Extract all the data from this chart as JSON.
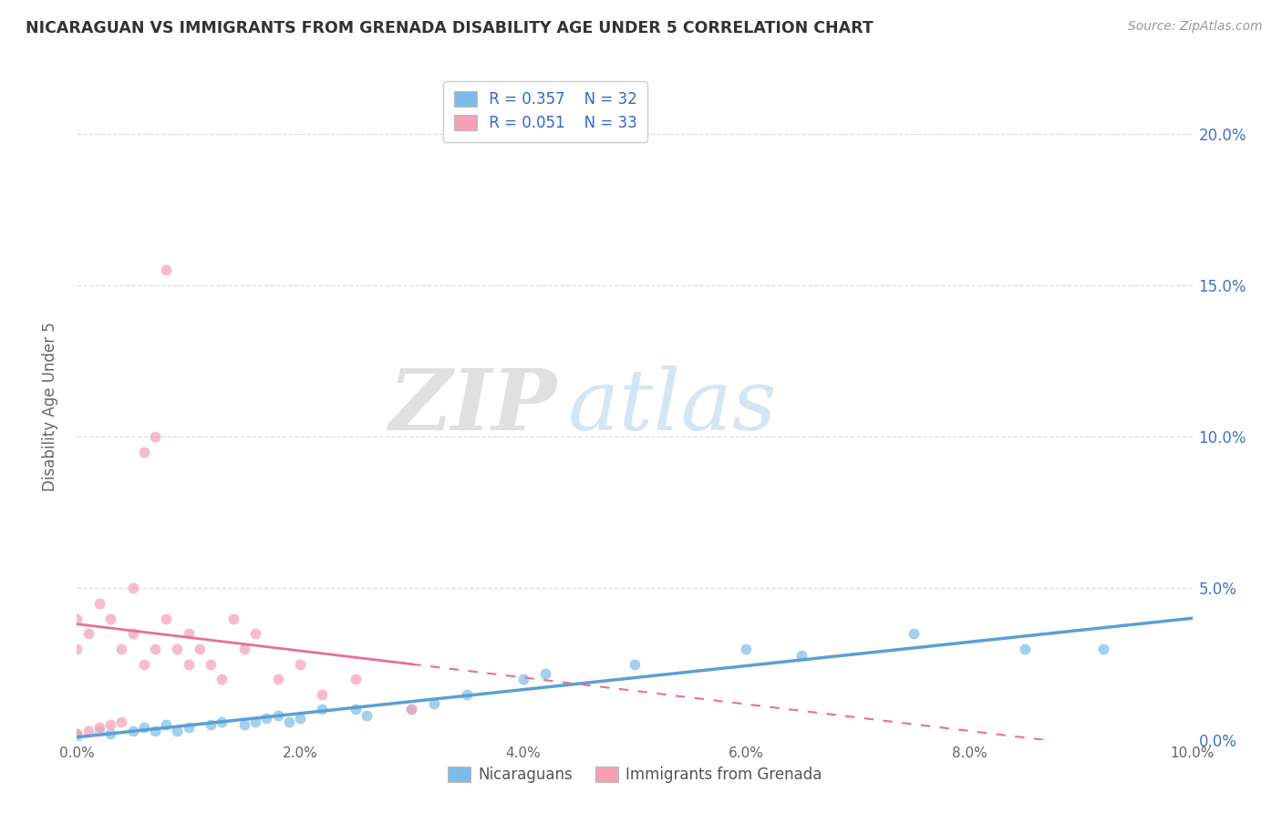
{
  "title": "NICARAGUAN VS IMMIGRANTS FROM GRENADA DISABILITY AGE UNDER 5 CORRELATION CHART",
  "source": "Source: ZipAtlas.com",
  "ylabel": "Disability Age Under 5",
  "watermark_zip": "ZIP",
  "watermark_atlas": "atlas",
  "xlim": [
    0.0,
    0.1
  ],
  "ylim": [
    0.0,
    0.22
  ],
  "ytick_vals": [
    0.0,
    0.05,
    0.1,
    0.15,
    0.2
  ],
  "ytick_labels_right": [
    "0.0%",
    "5.0%",
    "10.0%",
    "15.0%",
    "20.0%"
  ],
  "xtick_vals": [
    0.0,
    0.02,
    0.04,
    0.06,
    0.08,
    0.1
  ],
  "xtick_labels": [
    "0.0%",
    "2.0%",
    "4.0%",
    "6.0%",
    "8.0%",
    "10.0%"
  ],
  "legend_r1": "R = 0.357",
  "legend_n1": "N = 32",
  "legend_r2": "R = 0.051",
  "legend_n2": "N = 33",
  "color_nicaraguan": "#7bbde8",
  "color_grenada": "#f4a0b5",
  "color_line_nicaraguan": "#5b9fd4",
  "color_line_grenada": "#e87090",
  "nicaraguan_x": [
    0.0,
    0.0,
    0.002,
    0.003,
    0.005,
    0.006,
    0.007,
    0.008,
    0.009,
    0.01,
    0.012,
    0.013,
    0.015,
    0.016,
    0.017,
    0.018,
    0.019,
    0.02,
    0.022,
    0.025,
    0.026,
    0.03,
    0.032,
    0.035,
    0.04,
    0.042,
    0.05,
    0.06,
    0.065,
    0.075,
    0.085,
    0.092
  ],
  "nicaraguan_y": [
    0.001,
    0.002,
    0.003,
    0.002,
    0.003,
    0.004,
    0.003,
    0.005,
    0.003,
    0.004,
    0.005,
    0.006,
    0.005,
    0.006,
    0.007,
    0.008,
    0.006,
    0.007,
    0.01,
    0.01,
    0.008,
    0.01,
    0.012,
    0.015,
    0.02,
    0.022,
    0.025,
    0.03,
    0.028,
    0.035,
    0.03,
    0.03
  ],
  "grenada_x": [
    0.0,
    0.0,
    0.0,
    0.001,
    0.001,
    0.002,
    0.002,
    0.003,
    0.003,
    0.004,
    0.004,
    0.005,
    0.005,
    0.006,
    0.006,
    0.007,
    0.007,
    0.008,
    0.008,
    0.009,
    0.01,
    0.01,
    0.011,
    0.012,
    0.013,
    0.014,
    0.015,
    0.016,
    0.018,
    0.02,
    0.022,
    0.025,
    0.03
  ],
  "grenada_y": [
    0.002,
    0.03,
    0.04,
    0.003,
    0.035,
    0.004,
    0.045,
    0.005,
    0.04,
    0.006,
    0.03,
    0.035,
    0.05,
    0.025,
    0.095,
    0.03,
    0.1,
    0.04,
    0.155,
    0.03,
    0.025,
    0.035,
    0.03,
    0.025,
    0.02,
    0.04,
    0.03,
    0.035,
    0.02,
    0.025,
    0.015,
    0.02,
    0.01
  ],
  "background_color": "#ffffff",
  "grid_color": "#dddddd"
}
